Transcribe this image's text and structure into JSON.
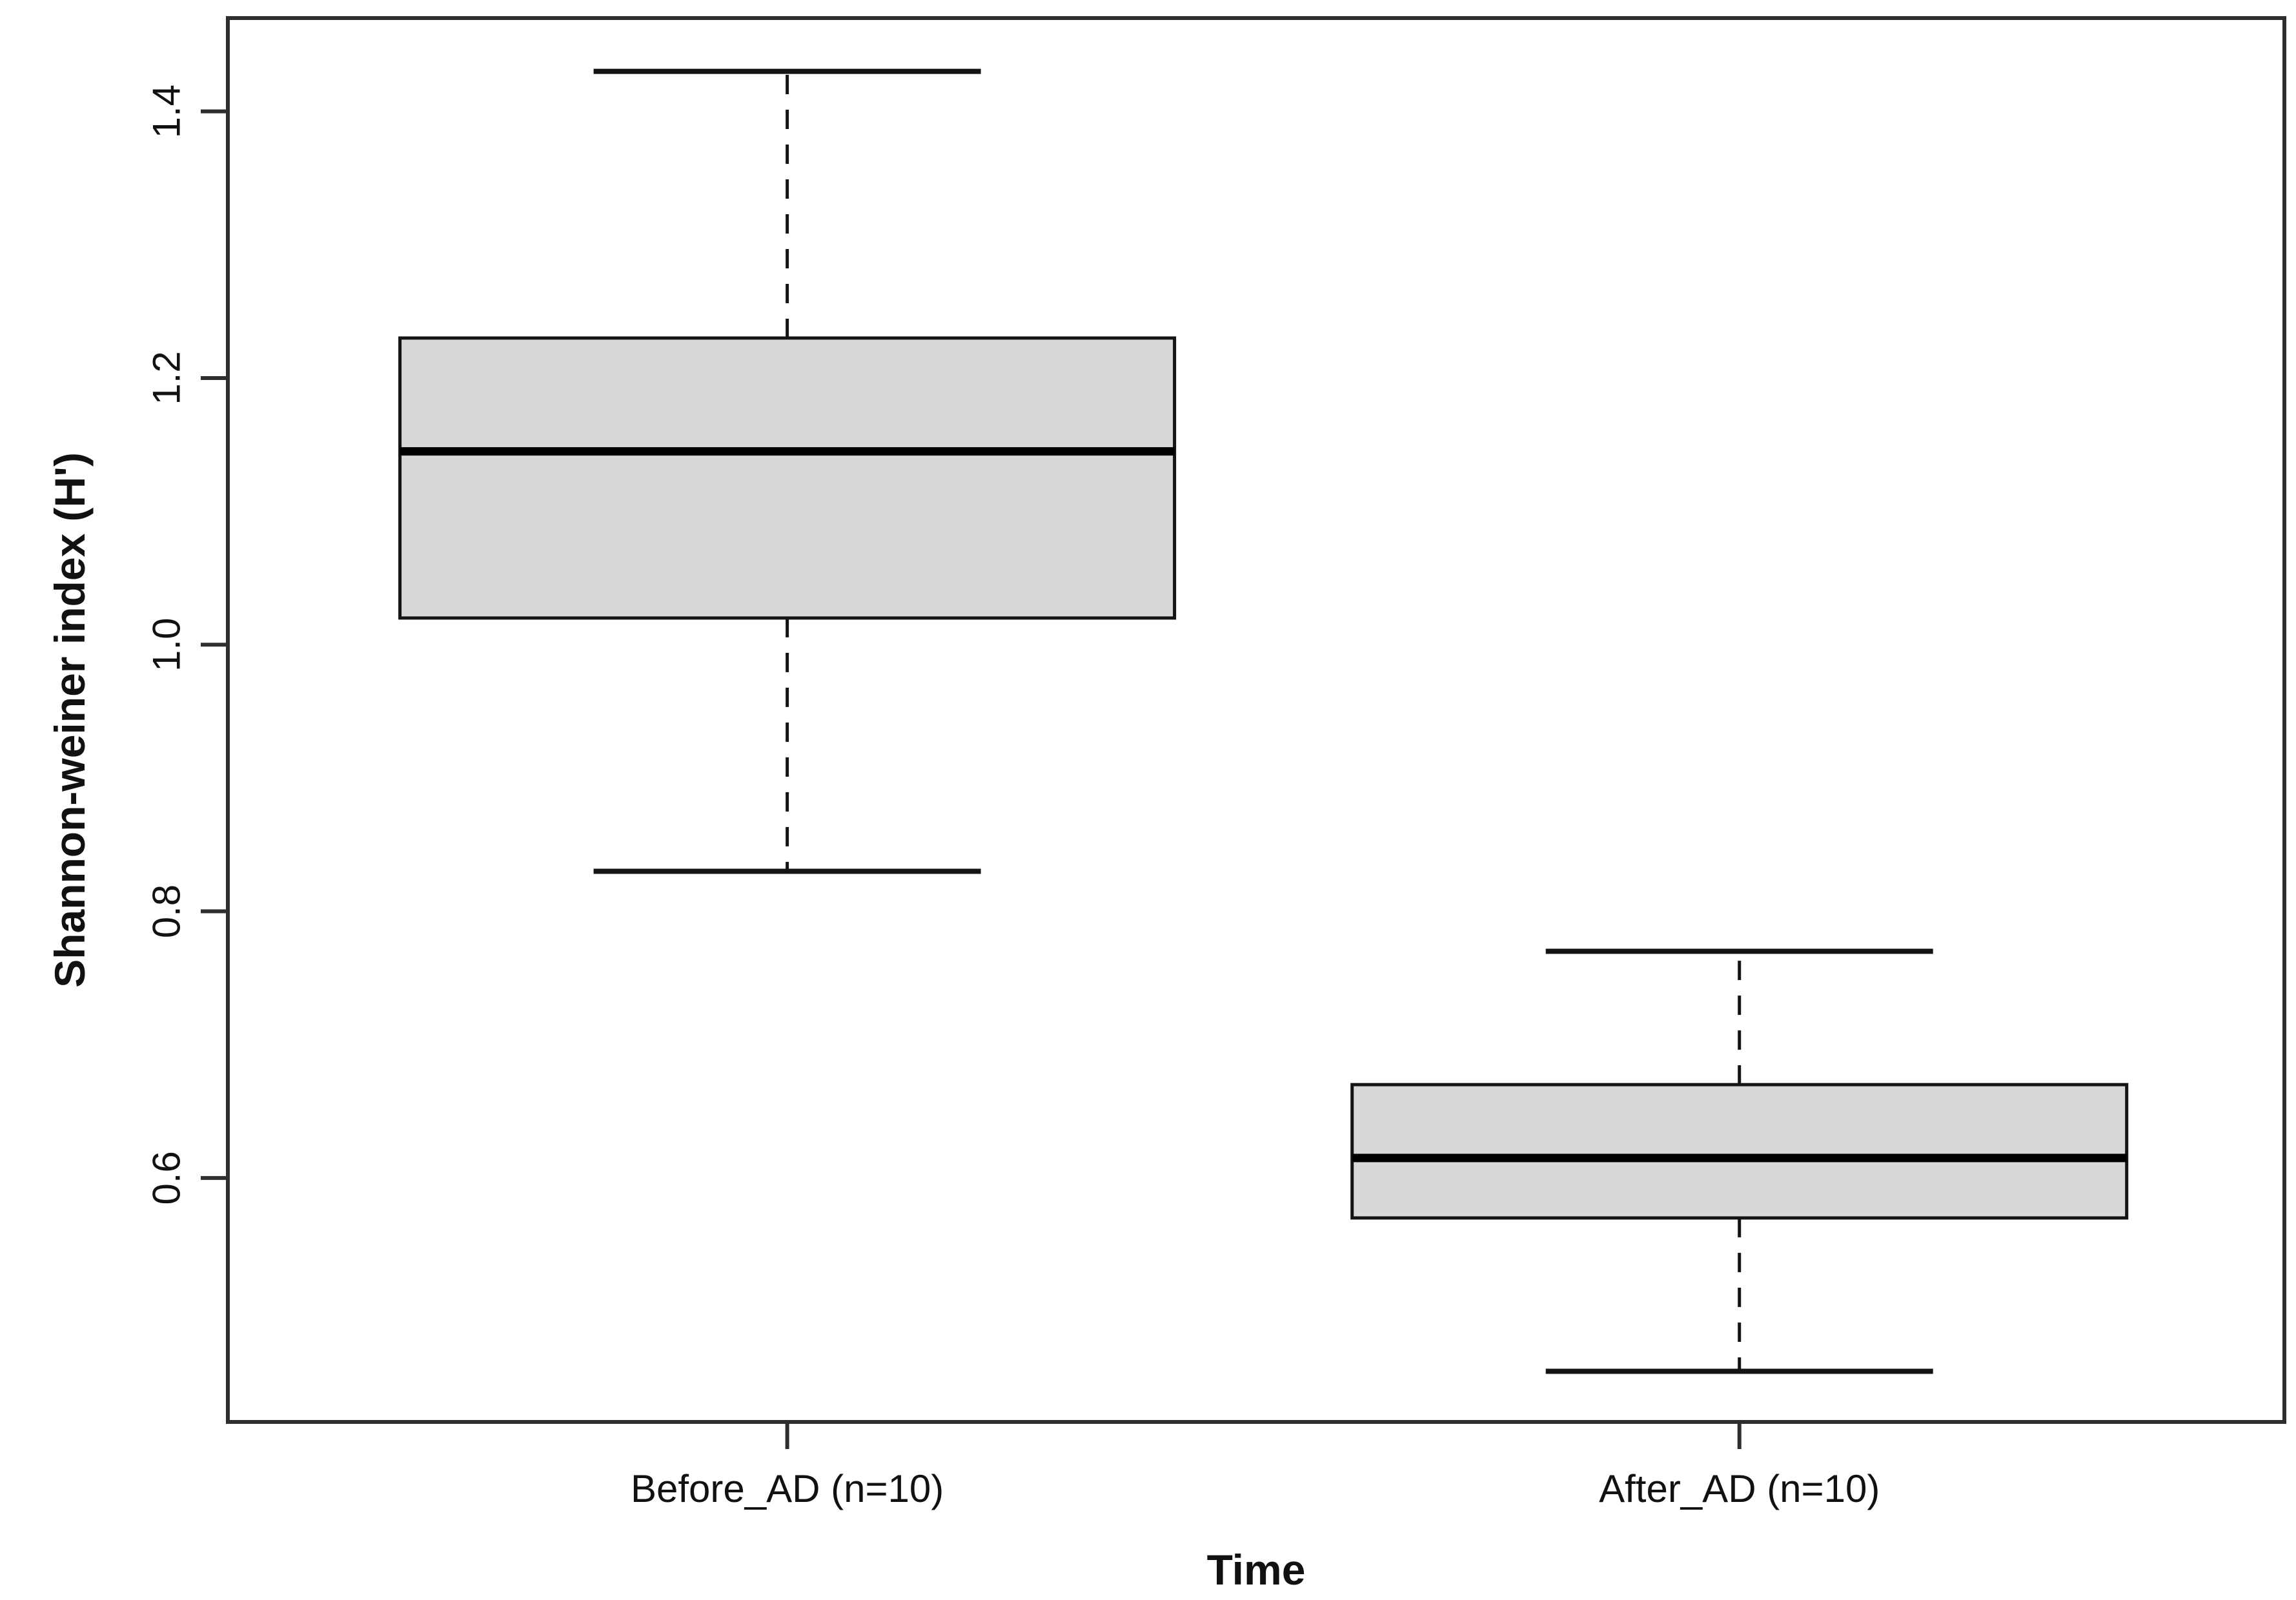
{
  "chart_data": {
    "type": "boxplot",
    "title": "",
    "xlabel": "Time",
    "ylabel": "Shannon-weiner index (H')",
    "categories": [
      "Before_AD (n=10)",
      "After_AD (n=10)"
    ],
    "series": [
      {
        "name": "Before_AD (n=10)",
        "n": 10,
        "whisker_low": 0.83,
        "q1": 1.02,
        "median": 1.145,
        "q3": 1.23,
        "whisker_high": 1.43
      },
      {
        "name": "After_AD (n=10)",
        "n": 10,
        "whisker_low": 0.455,
        "q1": 0.57,
        "median": 0.615,
        "q3": 0.67,
        "whisker_high": 0.77
      }
    ],
    "yticks": [
      "0.6",
      "0.8",
      "1.0",
      "1.2",
      "1.4"
    ],
    "ylim": [
      0.417,
      1.47
    ],
    "grid": false,
    "legend": null,
    "box_fill_color": "#d8d8d8",
    "box_line_color": "#141414",
    "median_color": "#000000",
    "axis_color": "#2e2e2e",
    "background_color": "#ffffff"
  }
}
